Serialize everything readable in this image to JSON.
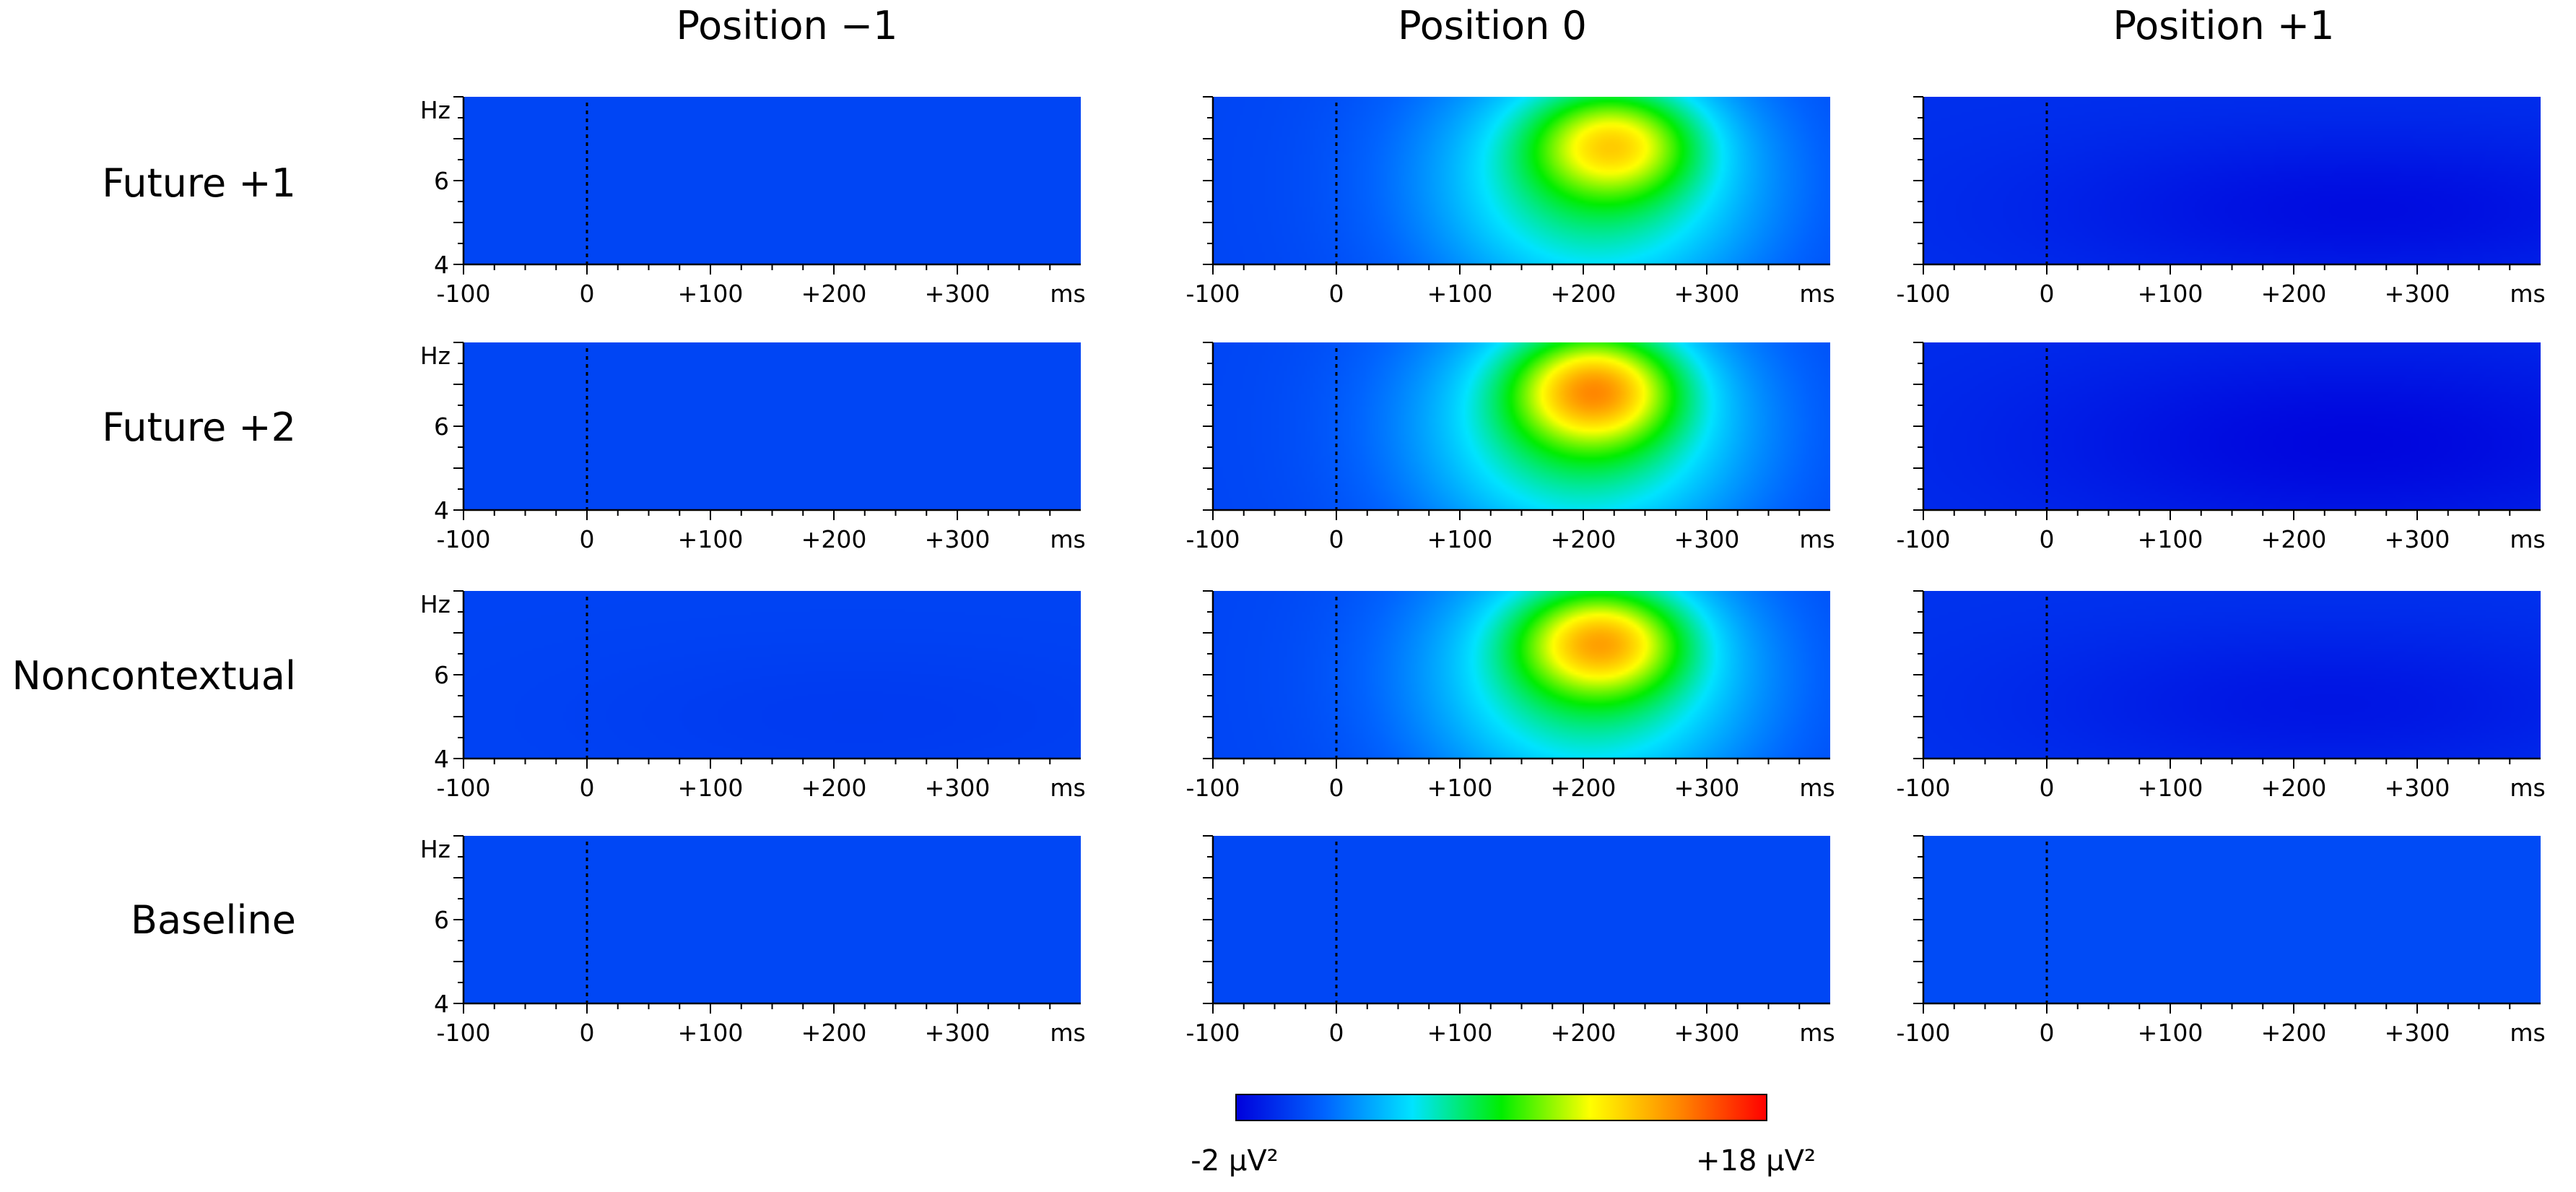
{
  "chart_data": {
    "type": "heatmap",
    "title": "",
    "columns": [
      "Position −1",
      "Position 0",
      "Position +1"
    ],
    "rows": [
      "Future +1",
      "Future +2",
      "Noncontextual",
      "Baseline"
    ],
    "x_axis": {
      "unit": "ms",
      "range": [
        -100,
        400
      ],
      "ticks": [
        -100,
        0,
        100,
        200,
        300
      ],
      "tick_labels": [
        "-100",
        "0",
        "+100",
        "+200",
        "+300"
      ],
      "unit_label": "ms"
    },
    "y_axis": {
      "unit": "Hz",
      "range": [
        4,
        8
      ],
      "ticks": [
        4,
        6
      ],
      "tick_labels": [
        "4",
        "6"
      ],
      "unit_label": "Hz"
    },
    "colorbar": {
      "min": -2,
      "max": 18,
      "min_label": "-2 μV²",
      "max_label": "+18 μV²",
      "colors": [
        "#0000dc",
        "#0064ff",
        "#00e4ff",
        "#00ee00",
        "#ffff00",
        "#ff8800",
        "#ff0000"
      ]
    },
    "panels": [
      {
        "row": "Future +1",
        "column": "Position −1",
        "background": 0.3,
        "blobs": []
      },
      {
        "row": "Future +1",
        "column": "Position 0",
        "background": 0.3,
        "blobs": [
          {
            "t": 210,
            "f": 6.0,
            "st": 95,
            "sf": 2.2,
            "amp": 6.5
          },
          {
            "t": 225,
            "f": 6.9,
            "st": 45,
            "sf": 0.85,
            "amp": 6.5
          }
        ]
      },
      {
        "row": "Future +1",
        "column": "Position +1",
        "background": -0.4,
        "blobs": [
          {
            "t": 260,
            "f": 5.3,
            "st": 180,
            "sf": 1.3,
            "amp": -1.2
          }
        ]
      },
      {
        "row": "Future +2",
        "column": "Position −1",
        "background": 0.3,
        "blobs": []
      },
      {
        "row": "Future +2",
        "column": "Position 0",
        "background": 0.3,
        "blobs": [
          {
            "t": 200,
            "f": 6.0,
            "st": 95,
            "sf": 2.2,
            "amp": 6.7
          },
          {
            "t": 210,
            "f": 6.9,
            "st": 45,
            "sf": 0.9,
            "amp": 8.2
          }
        ]
      },
      {
        "row": "Future +2",
        "column": "Position +1",
        "background": -0.5,
        "blobs": [
          {
            "t": 250,
            "f": 5.6,
            "st": 180,
            "sf": 1.6,
            "amp": -1.3
          }
        ]
      },
      {
        "row": "Noncontextual",
        "column": "Position −1",
        "background": 0.25,
        "blobs": [
          {
            "t": 220,
            "f": 5.0,
            "st": 160,
            "sf": 1.2,
            "amp": -0.3
          }
        ]
      },
      {
        "row": "Noncontextual",
        "column": "Position 0",
        "background": 0.3,
        "blobs": [
          {
            "t": 205,
            "f": 6.0,
            "st": 95,
            "sf": 2.2,
            "amp": 6.5
          },
          {
            "t": 215,
            "f": 6.8,
            "st": 45,
            "sf": 0.85,
            "amp": 7.6
          }
        ]
      },
      {
        "row": "Noncontextual",
        "column": "Position +1",
        "background": -0.3,
        "blobs": [
          {
            "t": 230,
            "f": 5.3,
            "st": 170,
            "sf": 1.3,
            "amp": -1.0
          }
        ]
      },
      {
        "row": "Baseline",
        "column": "Position −1",
        "background": 0.35,
        "blobs": []
      },
      {
        "row": "Baseline",
        "column": "Position 0",
        "background": 0.35,
        "blobs": []
      },
      {
        "row": "Baseline",
        "column": "Position +1",
        "background": 0.5,
        "blobs": []
      }
    ]
  }
}
